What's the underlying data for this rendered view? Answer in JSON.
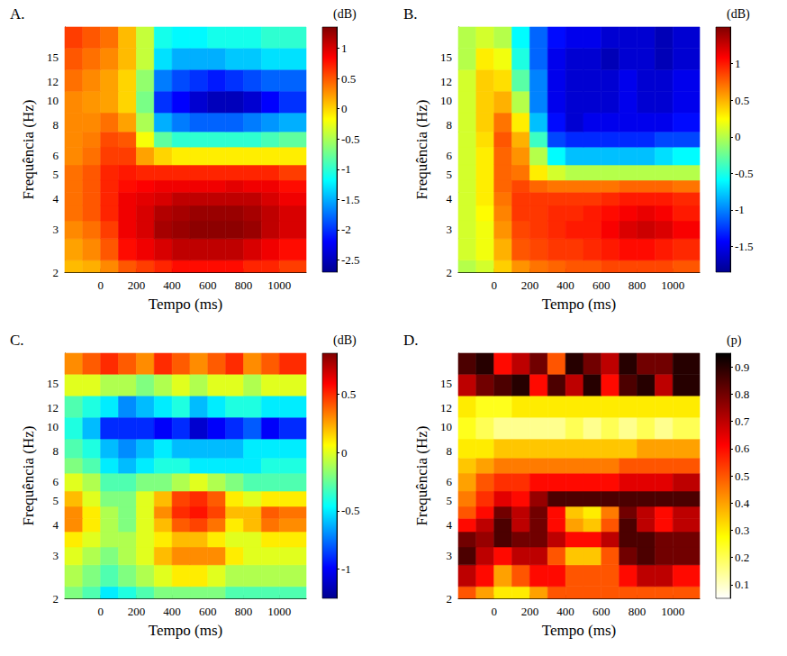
{
  "chart_data": [
    {
      "type": "heatmap",
      "title": "A.",
      "x_label": "Tempo (ms)",
      "y_label": "Frequência (Hz)",
      "log": "y",
      "color": "jet",
      "xlim": [
        -200,
        1150
      ],
      "xticks": [
        0,
        200,
        400,
        600,
        800,
        1000
      ],
      "ylim": [
        2,
        20
      ],
      "yticks": [
        2,
        3,
        4,
        5,
        6,
        8,
        10,
        12,
        15
      ],
      "x": [
        -150,
        -50,
        50,
        150,
        250,
        350,
        450,
        550,
        650,
        750,
        850,
        950,
        1050
      ],
      "y": [
        2,
        2.5,
        3,
        3.5,
        4,
        4.5,
        5,
        6,
        7,
        8,
        10,
        12,
        15,
        18
      ],
      "z": [
        [
          0.1,
          0.15,
          0.3,
          0.5,
          0.6,
          0.7,
          0.8,
          0.8,
          0.8,
          0.8,
          0.7,
          0.7,
          0.6
        ],
        [
          0.2,
          0.3,
          0.5,
          0.8,
          0.9,
          1.0,
          1.1,
          1.1,
          1.1,
          1.1,
          1.0,
          0.9,
          0.8
        ],
        [
          0.3,
          0.4,
          0.6,
          0.9,
          1.0,
          1.2,
          1.25,
          1.3,
          1.3,
          1.3,
          1.25,
          1.1,
          1.0
        ],
        [
          0.4,
          0.5,
          0.7,
          0.9,
          1.0,
          1.15,
          1.2,
          1.25,
          1.25,
          1.25,
          1.2,
          1.1,
          1.0
        ],
        [
          0.4,
          0.5,
          0.7,
          0.9,
          0.95,
          1.0,
          1.1,
          1.1,
          1.1,
          1.1,
          1.1,
          1.0,
          0.9
        ],
        [
          0.4,
          0.5,
          0.7,
          0.8,
          0.85,
          0.9,
          0.9,
          0.9,
          0.9,
          0.95,
          0.9,
          0.9,
          0.8
        ],
        [
          0.4,
          0.5,
          0.7,
          0.75,
          0.7,
          0.7,
          0.7,
          0.7,
          0.7,
          0.7,
          0.7,
          0.7,
          0.6
        ],
        [
          0.3,
          0.4,
          0.6,
          0.6,
          0.2,
          0.0,
          -0.1,
          -0.1,
          -0.1,
          -0.1,
          -0.1,
          -0.1,
          -0.1
        ],
        [
          0.3,
          0.35,
          0.55,
          0.5,
          -0.2,
          -0.8,
          -1.0,
          -1.0,
          -1.0,
          -1.0,
          -1.0,
          -0.9,
          -0.8
        ],
        [
          0.3,
          0.3,
          0.4,
          0.2,
          -0.5,
          -1.5,
          -1.7,
          -1.8,
          -1.8,
          -1.8,
          -1.7,
          -1.6,
          -1.5
        ],
        [
          0.3,
          0.25,
          0.2,
          0.0,
          -0.7,
          -2.0,
          -2.2,
          -2.4,
          -2.5,
          -2.5,
          -2.4,
          -2.2,
          -2.0
        ],
        [
          0.4,
          0.3,
          0.2,
          0.0,
          -0.6,
          -1.7,
          -1.9,
          -2.0,
          -2.1,
          -2.0,
          -1.9,
          -1.8,
          -1.8
        ],
        [
          0.5,
          0.4,
          0.3,
          0.1,
          -0.4,
          -1.3,
          -1.5,
          -1.5,
          -1.5,
          -1.4,
          -1.4,
          -1.3,
          -1.3
        ],
        [
          0.6,
          0.5,
          0.4,
          0.1,
          -0.4,
          -1.1,
          -1.2,
          -1.2,
          -1.1,
          -1.1,
          -1.1,
          -1.0,
          -1.0
        ]
      ],
      "colorbar": {
        "label": "(dB)",
        "range": [
          -2.7,
          1.35
        ],
        "ticks": [
          -2.5,
          -2,
          -1.5,
          -1,
          -0.5,
          0,
          0.5,
          1
        ]
      }
    },
    {
      "type": "heatmap",
      "title": "B.",
      "x_label": "Tempo (ms)",
      "y_label": "Frequência (Hz)",
      "log": "y",
      "color": "jet",
      "xlim": [
        -200,
        1150
      ],
      "xticks": [
        0,
        200,
        400,
        600,
        800,
        1000
      ],
      "ylim": [
        2,
        20
      ],
      "yticks": [
        2,
        3,
        4,
        5,
        6,
        8,
        10,
        12,
        15
      ],
      "x": [
        -150,
        -50,
        50,
        150,
        250,
        350,
        450,
        550,
        650,
        750,
        850,
        950,
        1050
      ],
      "y": [
        2,
        2.5,
        3,
        3.5,
        4,
        4.5,
        5,
        6,
        7,
        8,
        10,
        12,
        15,
        18
      ],
      "z": [
        [
          0.0,
          0.1,
          0.4,
          0.6,
          0.7,
          0.75,
          0.8,
          0.8,
          0.85,
          0.85,
          0.85,
          0.85,
          0.8
        ],
        [
          0.1,
          0.2,
          0.5,
          0.8,
          0.85,
          0.9,
          0.9,
          0.95,
          1.0,
          1.05,
          1.05,
          1.0,
          0.95
        ],
        [
          0.1,
          0.2,
          0.6,
          0.85,
          0.9,
          0.95,
          1.0,
          1.0,
          1.1,
          1.2,
          1.25,
          1.2,
          1.1
        ],
        [
          0.1,
          0.25,
          0.65,
          0.9,
          0.9,
          0.95,
          0.95,
          1.0,
          1.05,
          1.1,
          1.15,
          1.1,
          1.0
        ],
        [
          0.1,
          0.3,
          0.7,
          0.9,
          0.9,
          0.9,
          0.9,
          0.9,
          0.95,
          1.0,
          1.0,
          1.0,
          0.95
        ],
        [
          0.1,
          0.3,
          0.75,
          0.85,
          0.75,
          0.7,
          0.7,
          0.7,
          0.7,
          0.75,
          0.75,
          0.75,
          0.7
        ],
        [
          0.1,
          0.3,
          0.75,
          0.7,
          0.3,
          0.1,
          0.0,
          0.0,
          0.0,
          0.0,
          0.0,
          0.0,
          0.0
        ],
        [
          0.1,
          0.3,
          0.75,
          0.6,
          0.0,
          -0.6,
          -0.8,
          -0.8,
          -0.8,
          -0.8,
          -0.8,
          -0.7,
          -0.6
        ],
        [
          0.1,
          0.35,
          0.8,
          0.5,
          -0.4,
          -1.2,
          -1.3,
          -1.3,
          -1.3,
          -1.3,
          -1.3,
          -1.2,
          -1.2
        ],
        [
          0.1,
          0.4,
          0.7,
          0.3,
          -0.8,
          -1.4,
          -1.6,
          -1.5,
          -1.5,
          -1.5,
          -1.5,
          -1.5,
          -1.4
        ],
        [
          0.1,
          0.4,
          0.5,
          0.0,
          -1.0,
          -1.5,
          -1.6,
          -1.6,
          -1.6,
          -1.5,
          -1.6,
          -1.6,
          -1.5
        ],
        [
          0.1,
          0.4,
          0.35,
          -0.3,
          -1.0,
          -1.5,
          -1.6,
          -1.6,
          -1.6,
          -1.5,
          -1.6,
          -1.6,
          -1.5
        ],
        [
          0.0,
          0.3,
          0.2,
          -0.5,
          -1.1,
          -1.5,
          -1.6,
          -1.6,
          -1.7,
          -1.6,
          -1.6,
          -1.7,
          -1.6
        ],
        [
          0.0,
          0.1,
          0.0,
          -0.6,
          -1.1,
          -1.4,
          -1.5,
          -1.5,
          -1.6,
          -1.6,
          -1.6,
          -1.7,
          -1.6
        ]
      ],
      "colorbar": {
        "label": "(dB)",
        "range": [
          -1.85,
          1.5
        ],
        "ticks": [
          -1.5,
          -1,
          -0.5,
          0,
          0.5,
          1
        ]
      }
    },
    {
      "type": "heatmap",
      "title": "C.",
      "x_label": "Tempo (ms)",
      "y_label": "Frequência (Hz)",
      "log": "y",
      "color": "jet",
      "xlim": [
        -200,
        1150
      ],
      "xticks": [
        0,
        200,
        400,
        600,
        800,
        1000
      ],
      "ylim": [
        2,
        20
      ],
      "yticks": [
        2,
        3,
        4,
        5,
        6,
        8,
        10,
        12,
        15
      ],
      "x": [
        -150,
        -50,
        50,
        150,
        250,
        350,
        450,
        550,
        650,
        750,
        850,
        950,
        1050
      ],
      "y": [
        2,
        2.5,
        3,
        3.5,
        4,
        4.5,
        5,
        6,
        7,
        8,
        10,
        12,
        15,
        18
      ],
      "z": [
        [
          -0.2,
          -0.3,
          -0.5,
          -0.4,
          -0.3,
          -0.2,
          -0.2,
          -0.2,
          -0.2,
          -0.3,
          -0.3,
          -0.3,
          -0.3
        ],
        [
          -0.1,
          -0.2,
          -0.3,
          -0.2,
          -0.1,
          0.0,
          0.1,
          0.1,
          0.0,
          -0.1,
          -0.1,
          -0.1,
          -0.1
        ],
        [
          0.0,
          -0.1,
          -0.2,
          -0.1,
          0.0,
          0.2,
          0.3,
          0.3,
          0.3,
          0.1,
          0.0,
          0.0,
          0.0
        ],
        [
          0.1,
          0.0,
          -0.1,
          -0.1,
          0.0,
          0.1,
          0.2,
          0.2,
          0.1,
          0.0,
          0.0,
          0.1,
          0.1
        ],
        [
          0.3,
          0.1,
          -0.1,
          -0.2,
          0.0,
          0.2,
          0.4,
          0.45,
          0.35,
          0.1,
          0.2,
          0.35,
          0.3
        ],
        [
          0.3,
          0.1,
          -0.1,
          -0.2,
          0.0,
          0.3,
          0.5,
          0.55,
          0.45,
          0.2,
          0.2,
          0.4,
          0.35
        ],
        [
          0.2,
          0.0,
          -0.2,
          -0.2,
          0.0,
          0.2,
          0.45,
          0.5,
          0.4,
          0.1,
          0.0,
          0.1,
          0.1
        ],
        [
          0.0,
          -0.1,
          -0.3,
          -0.3,
          -0.2,
          -0.2,
          -0.1,
          0.0,
          -0.1,
          -0.2,
          -0.3,
          -0.3,
          -0.3
        ],
        [
          -0.2,
          -0.3,
          -0.5,
          -0.6,
          -0.5,
          -0.4,
          -0.4,
          -0.5,
          -0.5,
          -0.5,
          -0.5,
          -0.4,
          -0.4
        ],
        [
          -0.3,
          -0.4,
          -0.6,
          -0.7,
          -0.6,
          -0.5,
          -0.6,
          -0.6,
          -0.6,
          -0.6,
          -0.5,
          -0.5,
          -0.5
        ],
        [
          -0.4,
          -0.6,
          -0.9,
          -0.9,
          -0.9,
          -1.0,
          -0.9,
          -1.1,
          -1.0,
          -0.9,
          -0.8,
          -1.0,
          -0.9
        ],
        [
          -0.3,
          -0.4,
          -0.5,
          -0.7,
          -0.6,
          -0.5,
          -0.4,
          -0.6,
          -0.5,
          -0.4,
          -0.4,
          -0.5,
          -0.5
        ],
        [
          0.0,
          0.0,
          -0.1,
          -0.1,
          -0.2,
          -0.1,
          0.0,
          -0.1,
          0.0,
          0.0,
          -0.1,
          0.0,
          0.0
        ],
        [
          0.3,
          0.4,
          0.5,
          0.4,
          0.3,
          0.5,
          0.4,
          0.3,
          0.4,
          0.5,
          0.3,
          0.4,
          0.5
        ]
      ],
      "colorbar": {
        "label": "(dB)",
        "range": [
          -1.25,
          0.85
        ],
        "ticks": [
          -1,
          -0.5,
          0,
          0.5
        ]
      }
    },
    {
      "type": "heatmap",
      "title": "D.",
      "x_label": "Tempo (ms)",
      "y_label": "Frequência (Hz)",
      "log": "y",
      "color": "hot_r",
      "xlim": [
        -200,
        1150
      ],
      "xticks": [
        0,
        200,
        400,
        600,
        800,
        1000
      ],
      "ylim": [
        2,
        20
      ],
      "yticks": [
        2,
        3,
        4,
        5,
        6,
        8,
        10,
        12,
        15
      ],
      "x": [
        -150,
        -50,
        50,
        150,
        250,
        350,
        450,
        550,
        650,
        750,
        850,
        950,
        1050
      ],
      "y": [
        2,
        2.5,
        3,
        3.5,
        4,
        4.5,
        5,
        6,
        7,
        8,
        10,
        12,
        15,
        18
      ],
      "z": [
        [
          0.5,
          0.4,
          0.3,
          0.3,
          0.4,
          0.5,
          0.5,
          0.5,
          0.5,
          0.5,
          0.5,
          0.5,
          0.5
        ],
        [
          0.7,
          0.6,
          0.4,
          0.5,
          0.6,
          0.6,
          0.5,
          0.5,
          0.5,
          0.6,
          0.7,
          0.7,
          0.6
        ],
        [
          0.85,
          0.7,
          0.6,
          0.7,
          0.7,
          0.5,
          0.35,
          0.35,
          0.5,
          0.8,
          0.85,
          0.8,
          0.8
        ],
        [
          0.8,
          0.75,
          0.85,
          0.8,
          0.8,
          0.7,
          0.6,
          0.6,
          0.7,
          0.85,
          0.85,
          0.8,
          0.8
        ],
        [
          0.6,
          0.7,
          0.85,
          0.7,
          0.8,
          0.6,
          0.4,
          0.35,
          0.5,
          0.85,
          0.7,
          0.6,
          0.7
        ],
        [
          0.5,
          0.6,
          0.8,
          0.7,
          0.8,
          0.6,
          0.35,
          0.3,
          0.45,
          0.8,
          0.7,
          0.6,
          0.7
        ],
        [
          0.45,
          0.55,
          0.65,
          0.6,
          0.75,
          0.85,
          0.85,
          0.85,
          0.85,
          0.85,
          0.85,
          0.85,
          0.85
        ],
        [
          0.4,
          0.5,
          0.55,
          0.55,
          0.6,
          0.6,
          0.6,
          0.6,
          0.6,
          0.65,
          0.65,
          0.65,
          0.7
        ],
        [
          0.35,
          0.4,
          0.45,
          0.45,
          0.45,
          0.45,
          0.45,
          0.45,
          0.45,
          0.5,
          0.5,
          0.5,
          0.5
        ],
        [
          0.3,
          0.3,
          0.35,
          0.35,
          0.35,
          0.35,
          0.35,
          0.35,
          0.35,
          0.35,
          0.4,
          0.4,
          0.4
        ],
        [
          0.25,
          0.2,
          0.15,
          0.15,
          0.15,
          0.15,
          0.2,
          0.15,
          0.2,
          0.15,
          0.2,
          0.15,
          0.2
        ],
        [
          0.3,
          0.25,
          0.25,
          0.3,
          0.3,
          0.3,
          0.3,
          0.3,
          0.3,
          0.3,
          0.3,
          0.3,
          0.3
        ],
        [
          0.7,
          0.8,
          0.85,
          0.9,
          0.6,
          0.85,
          0.7,
          0.9,
          0.6,
          0.85,
          0.9,
          0.7,
          0.9
        ],
        [
          0.85,
          0.9,
          0.6,
          0.7,
          0.8,
          0.5,
          0.9,
          0.8,
          0.7,
          0.9,
          0.8,
          0.8,
          0.9
        ]
      ],
      "colorbar": {
        "label": "(p)",
        "range": [
          0.05,
          0.95
        ],
        "ticks": [
          0.1,
          0.2,
          0.3,
          0.4,
          0.5,
          0.6,
          0.7,
          0.8,
          0.9
        ]
      }
    }
  ]
}
